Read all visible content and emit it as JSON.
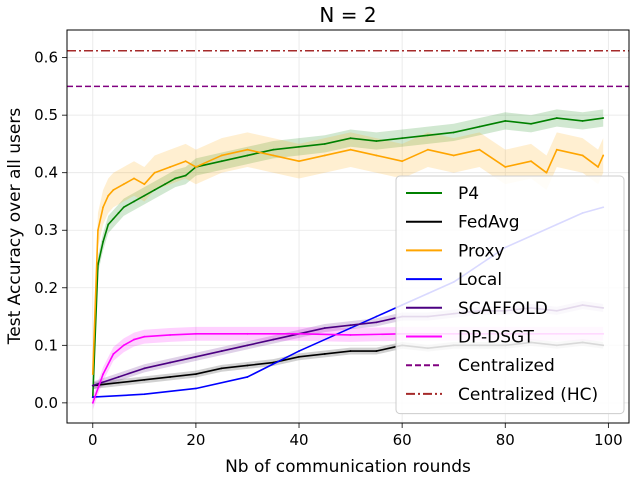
{
  "chart_data": {
    "type": "line",
    "title": "N = 2",
    "xlabel": "Nb of communication rounds",
    "ylabel": "Test Accuracy over all users",
    "xlim": [
      -5,
      104
    ],
    "ylim": [
      -0.035,
      0.648
    ],
    "xticks": [
      0,
      20,
      40,
      60,
      80,
      100
    ],
    "yticks": [
      0.0,
      0.1,
      0.2,
      0.3,
      0.4,
      0.5,
      0.6
    ],
    "ytick_labels": [
      "0.0",
      "0.1",
      "0.2",
      "0.3",
      "0.4",
      "0.5",
      "0.6"
    ],
    "grid": true,
    "legend_position": "lower right",
    "series": [
      {
        "name": "P4",
        "color": "#008000",
        "style": "solid",
        "band": 0.015,
        "x": [
          0,
          1,
          2,
          3,
          4,
          5,
          6,
          8,
          10,
          12,
          14,
          16,
          18,
          20,
          25,
          30,
          35,
          40,
          45,
          50,
          55,
          60,
          65,
          70,
          75,
          80,
          85,
          90,
          95,
          99
        ],
        "y": [
          0.01,
          0.24,
          0.28,
          0.31,
          0.32,
          0.33,
          0.34,
          0.35,
          0.36,
          0.37,
          0.38,
          0.39,
          0.395,
          0.41,
          0.42,
          0.43,
          0.44,
          0.445,
          0.45,
          0.46,
          0.455,
          0.46,
          0.465,
          0.47,
          0.48,
          0.49,
          0.485,
          0.495,
          0.49,
          0.495
        ]
      },
      {
        "name": "FedAvg",
        "color": "#000000",
        "style": "solid",
        "band": 0.006,
        "x": [
          0,
          5,
          10,
          15,
          20,
          25,
          30,
          35,
          40,
          45,
          50,
          55,
          60,
          65,
          70,
          75,
          80,
          85,
          90,
          95,
          99
        ],
        "y": [
          0.03,
          0.035,
          0.04,
          0.045,
          0.05,
          0.06,
          0.065,
          0.07,
          0.08,
          0.085,
          0.09,
          0.09,
          0.1,
          0.095,
          0.1,
          0.1,
          0.1,
          0.105,
          0.1,
          0.105,
          0.1
        ]
      },
      {
        "name": "Proxy",
        "color": "#FFA500",
        "style": "solid",
        "band": 0.03,
        "x": [
          0,
          1,
          2,
          3,
          4,
          6,
          8,
          10,
          12,
          15,
          18,
          20,
          25,
          30,
          35,
          40,
          45,
          50,
          55,
          60,
          65,
          70,
          75,
          80,
          85,
          88,
          90,
          95,
          98,
          99
        ],
        "y": [
          0.05,
          0.3,
          0.34,
          0.36,
          0.37,
          0.38,
          0.39,
          0.38,
          0.4,
          0.41,
          0.42,
          0.41,
          0.43,
          0.44,
          0.43,
          0.42,
          0.43,
          0.44,
          0.43,
          0.42,
          0.44,
          0.43,
          0.44,
          0.41,
          0.42,
          0.4,
          0.44,
          0.43,
          0.41,
          0.43
        ]
      },
      {
        "name": "Local",
        "color": "#0000FF",
        "style": "solid",
        "band": 0.0,
        "x": [
          0,
          10,
          20,
          30,
          40,
          50,
          55,
          60,
          65,
          70,
          75,
          80,
          85,
          90,
          95,
          99
        ],
        "y": [
          0.01,
          0.015,
          0.025,
          0.045,
          0.09,
          0.13,
          0.15,
          0.17,
          0.19,
          0.21,
          0.24,
          0.27,
          0.29,
          0.31,
          0.33,
          0.34
        ]
      },
      {
        "name": "SCAFFOLD",
        "color": "#4B0082",
        "style": "solid",
        "band": 0.007,
        "x": [
          0,
          5,
          10,
          15,
          20,
          25,
          30,
          35,
          40,
          45,
          50,
          55,
          60,
          65,
          70,
          75,
          80,
          85,
          90,
          95,
          99
        ],
        "y": [
          0.03,
          0.045,
          0.06,
          0.07,
          0.08,
          0.09,
          0.1,
          0.11,
          0.12,
          0.13,
          0.135,
          0.14,
          0.15,
          0.15,
          0.155,
          0.16,
          0.16,
          0.165,
          0.16,
          0.17,
          0.165
        ]
      },
      {
        "name": "DP-DSGT",
        "color": "#FF00FF",
        "style": "solid",
        "band": 0.012,
        "x": [
          0,
          2,
          4,
          6,
          8,
          10,
          15,
          20,
          30,
          40,
          50,
          60,
          70,
          80,
          90,
          99
        ],
        "y": [
          0.0,
          0.05,
          0.085,
          0.1,
          0.11,
          0.115,
          0.118,
          0.12,
          0.12,
          0.12,
          0.118,
          0.12,
          0.12,
          0.12,
          0.12,
          0.12
        ]
      },
      {
        "name": "Centralized",
        "color": "#800080",
        "style": "dashed",
        "hline": 0.55
      },
      {
        "name": "Centralized (HC)",
        "color": "#A52A2A",
        "style": "dashdot",
        "hline": 0.612
      }
    ]
  }
}
